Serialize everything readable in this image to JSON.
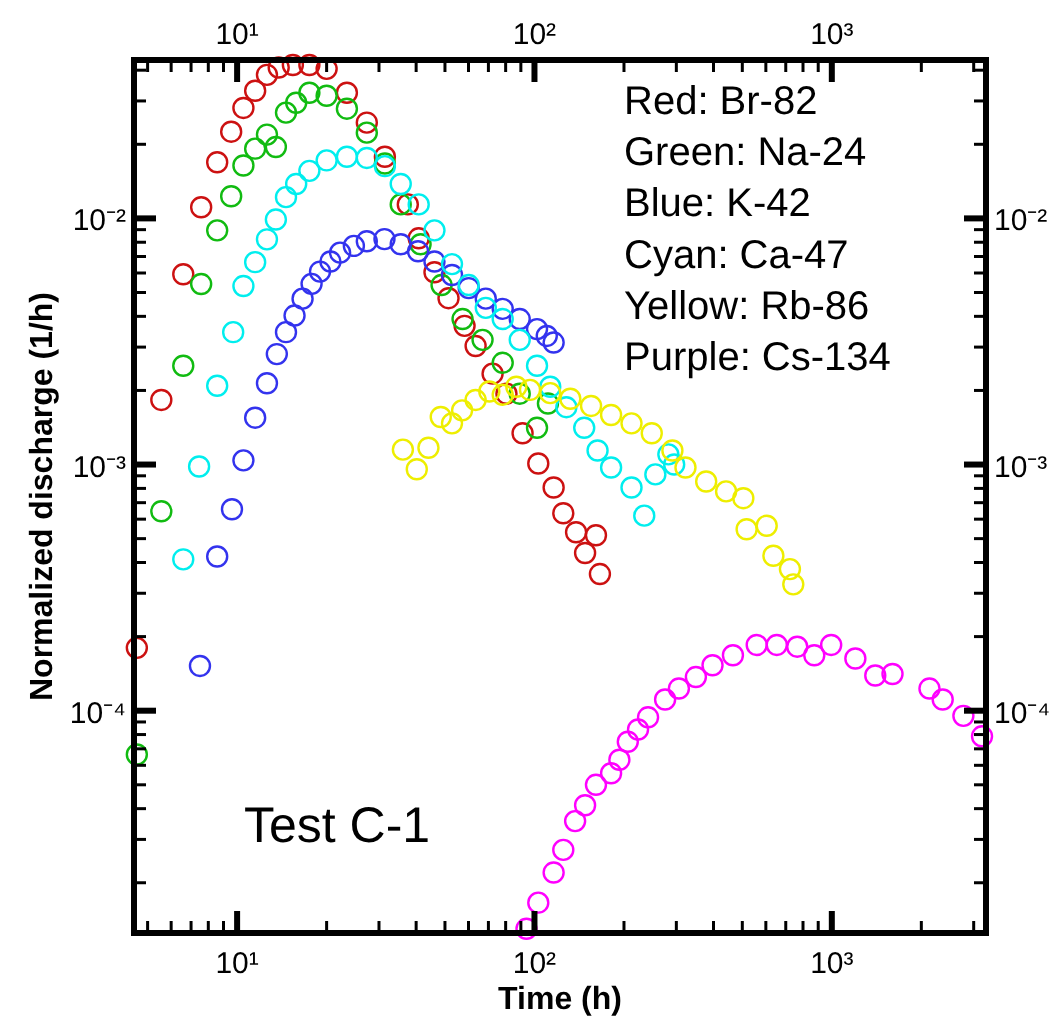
{
  "chart_data": {
    "type": "scatter",
    "xlabel": "Time (h)",
    "ylabel": "Normalized discharge (1/h)",
    "log": "xy",
    "marker": "circle",
    "xlim": [
      4.5,
      3300
    ],
    "ylim": [
      1.25e-05,
      0.044
    ],
    "xticks": [
      {
        "value": 5,
        "label": null
      },
      {
        "value": 6,
        "label": null
      },
      {
        "value": 7,
        "label": null
      },
      {
        "value": 8,
        "label": null
      },
      {
        "value": 9,
        "label": null
      },
      {
        "value": 10,
        "label": "10¹"
      },
      {
        "value": 20,
        "label": null
      },
      {
        "value": 30,
        "label": null
      },
      {
        "value": 40,
        "label": null
      },
      {
        "value": 50,
        "label": null
      },
      {
        "value": 60,
        "label": null
      },
      {
        "value": 70,
        "label": null
      },
      {
        "value": 80,
        "label": null
      },
      {
        "value": 90,
        "label": null
      },
      {
        "value": 100,
        "label": "10²"
      },
      {
        "value": 200,
        "label": null
      },
      {
        "value": 300,
        "label": null
      },
      {
        "value": 400,
        "label": null
      },
      {
        "value": 500,
        "label": null
      },
      {
        "value": 600,
        "label": null
      },
      {
        "value": 700,
        "label": null
      },
      {
        "value": 800,
        "label": null
      },
      {
        "value": 900,
        "label": null
      },
      {
        "value": 1000,
        "label": "10³"
      },
      {
        "value": 2000,
        "label": null
      },
      {
        "value": 3000,
        "label": null
      }
    ],
    "yticks": [
      {
        "value": 2e-05,
        "label": null
      },
      {
        "value": 3e-05,
        "label": null
      },
      {
        "value": 4e-05,
        "label": null
      },
      {
        "value": 5e-05,
        "label": null
      },
      {
        "value": 6e-05,
        "label": null
      },
      {
        "value": 7e-05,
        "label": null
      },
      {
        "value": 8e-05,
        "label": null
      },
      {
        "value": 9e-05,
        "label": null
      },
      {
        "value": 0.0001,
        "label": "10⁻⁴"
      },
      {
        "value": 0.0002,
        "label": null
      },
      {
        "value": 0.0003,
        "label": null
      },
      {
        "value": 0.0004,
        "label": null
      },
      {
        "value": 0.0005,
        "label": null
      },
      {
        "value": 0.0006,
        "label": null
      },
      {
        "value": 0.0007,
        "label": null
      },
      {
        "value": 0.0008,
        "label": null
      },
      {
        "value": 0.0009,
        "label": null
      },
      {
        "value": 0.001,
        "label": "10⁻³"
      },
      {
        "value": 0.002,
        "label": null
      },
      {
        "value": 0.003,
        "label": null
      },
      {
        "value": 0.004,
        "label": null
      },
      {
        "value": 0.005,
        "label": null
      },
      {
        "value": 0.006,
        "label": null
      },
      {
        "value": 0.007,
        "label": null
      },
      {
        "value": 0.008,
        "label": null
      },
      {
        "value": 0.009,
        "label": null
      },
      {
        "value": 0.01,
        "label": "10⁻²"
      },
      {
        "value": 0.02,
        "label": null
      },
      {
        "value": 0.03,
        "label": null
      },
      {
        "value": 0.04,
        "label": null
      }
    ],
    "annotations": [
      "Red: Br-82",
      "Green: Na-24",
      "Blue: K-42",
      "Cyan: Ca-47",
      "Yellow: Rb-86",
      "Purple: Cs-134",
      "Test C-1"
    ],
    "series": [
      {
        "color": "#cc1111",
        "x": [
          4.6,
          5.56,
          6.59,
          7.57,
          8.57,
          9.55,
          10.5,
          11.5,
          12.6,
          13.8,
          15.4,
          17.5,
          20.0,
          23.4,
          27.3,
          31.4,
          37.5,
          40.8,
          46.1,
          51.4,
          58.2,
          63.4,
          72.3,
          80.5,
          91.2,
          103,
          116,
          125,
          138,
          161,
          148,
          166
        ],
        "values": [
          0.00018,
          0.00183,
          0.00593,
          0.0111,
          0.0169,
          0.0225,
          0.0281,
          0.033,
          0.0383,
          0.041,
          0.042,
          0.042,
          0.0405,
          0.0324,
          0.0245,
          0.0178,
          0.0114,
          0.0083,
          0.00604,
          0.00474,
          0.00366,
          0.00303,
          0.00234,
          0.00194,
          0.00134,
          0.00101,
          0.000807,
          0.000634,
          0.000531,
          0.000516,
          0.000437,
          0.000359
        ]
      },
      {
        "color": "#11bb11",
        "x": [
          4.6,
          5.56,
          6.59,
          7.57,
          8.57,
          9.55,
          10.5,
          11.5,
          12.6,
          13.5,
          14.6,
          15.8,
          17.5,
          20.0,
          23.4,
          27.3,
          31.4,
          35.5,
          41.4,
          48.7,
          57.3,
          66.9,
          78.2,
          89.2,
          102,
          111
        ],
        "values": [
          6.64e-05,
          0.000646,
          0.00252,
          0.00541,
          0.00894,
          0.0123,
          0.0164,
          0.0192,
          0.0219,
          0.0195,
          0.0269,
          0.0295,
          0.0324,
          0.0315,
          0.0279,
          0.0223,
          0.0167,
          0.0114,
          0.00785,
          0.00536,
          0.0039,
          0.00321,
          0.00259,
          0.00194,
          0.00141,
          0.00177
        ]
      },
      {
        "color": "#3333ee",
        "x": [
          7.5,
          8.57,
          9.61,
          10.5,
          11.5,
          12.6,
          13.6,
          14.6,
          15.6,
          16.6,
          17.8,
          19.0,
          20.6,
          22.2,
          24.7,
          27.3,
          31.3,
          35.5,
          40.6,
          46.1,
          52.8,
          60.1,
          68.6,
          78.2,
          89.2,
          102,
          110,
          116
        ],
        "values": [
          0.000152,
          0.000423,
          0.000658,
          0.00104,
          0.00155,
          0.00214,
          0.00281,
          0.00345,
          0.00403,
          0.00472,
          0.00542,
          0.00608,
          0.00668,
          0.00726,
          0.00773,
          0.00807,
          0.00824,
          0.00785,
          0.00735,
          0.00668,
          0.00589,
          0.00521,
          0.00472,
          0.00429,
          0.0039,
          0.00355,
          0.00333,
          0.00313
        ]
      },
      {
        "color": "#00eeee",
        "x": [
          6.59,
          7.45,
          8.57,
          9.7,
          10.5,
          11.5,
          12.6,
          13.5,
          14.6,
          15.8,
          17.5,
          20.0,
          23.4,
          27.3,
          31.4,
          35.5,
          40.8,
          46.1,
          52.8,
          60.1,
          68.6,
          78.2,
          89.2,
          102,
          113,
          128,
          147,
          163,
          181,
          212,
          234,
          255,
          282,
          295
        ],
        "values": [
          0.000412,
          0.000982,
          0.00209,
          0.00345,
          0.00531,
          0.00664,
          0.00822,
          0.00989,
          0.0122,
          0.0138,
          0.0156,
          0.0172,
          0.0178,
          0.0176,
          0.0163,
          0.0138,
          0.0114,
          0.00894,
          0.00652,
          0.00536,
          0.00433,
          0.0039,
          0.00321,
          0.00252,
          0.00207,
          0.00171,
          0.00141,
          0.00114,
          0.000973,
          0.000807,
          0.00062,
          0.000912,
          0.0011,
          0.001
        ]
      },
      {
        "color": "#eeee00",
        "x": [
          36.1,
          40.2,
          44.0,
          48.4,
          52.8,
          57.1,
          63.4,
          70.5,
          78.2,
          86.9,
          96.6,
          113,
          132,
          155,
          181,
          212,
          248,
          291,
          322,
          378,
          441,
          504,
          517,
          604,
          636,
          723,
          742
        ],
        "values": [
          0.00115,
          0.000957,
          0.00117,
          0.00156,
          0.00147,
          0.00166,
          0.00183,
          0.00198,
          0.00192,
          0.00207,
          0.00201,
          0.00195,
          0.00185,
          0.00173,
          0.00159,
          0.00147,
          0.00134,
          0.00114,
          0.000973,
          0.000853,
          0.000778,
          0.00073,
          0.000546,
          0.000564,
          0.000426,
          0.000376,
          0.000326
        ]
      },
      {
        "color": "#ff00ff",
        "x": [
          94,
          103,
          116,
          125,
          137,
          148,
          161,
          181,
          193,
          206,
          223,
          241,
          275,
          306,
          349,
          397,
          465,
          559,
          653,
          765,
          873,
          995,
          1200,
          1400,
          1600,
          2130,
          2360,
          2770,
          3200
        ],
        "values": [
          1.3e-05,
          1.66e-05,
          2.2e-05,
          2.72e-05,
          3.56e-05,
          4.13e-05,
          5e-05,
          5.57e-05,
          6.32e-05,
          7.48e-05,
          8.39e-05,
          9.4e-05,
          0.000111,
          0.000123,
          0.000137,
          0.000153,
          0.000168,
          0.000185,
          0.000185,
          0.000182,
          0.000168,
          0.000185,
          0.000163,
          0.000139,
          0.000141,
          0.000123,
          0.000111,
          9.53e-05,
          7.87e-05
        ]
      }
    ]
  }
}
